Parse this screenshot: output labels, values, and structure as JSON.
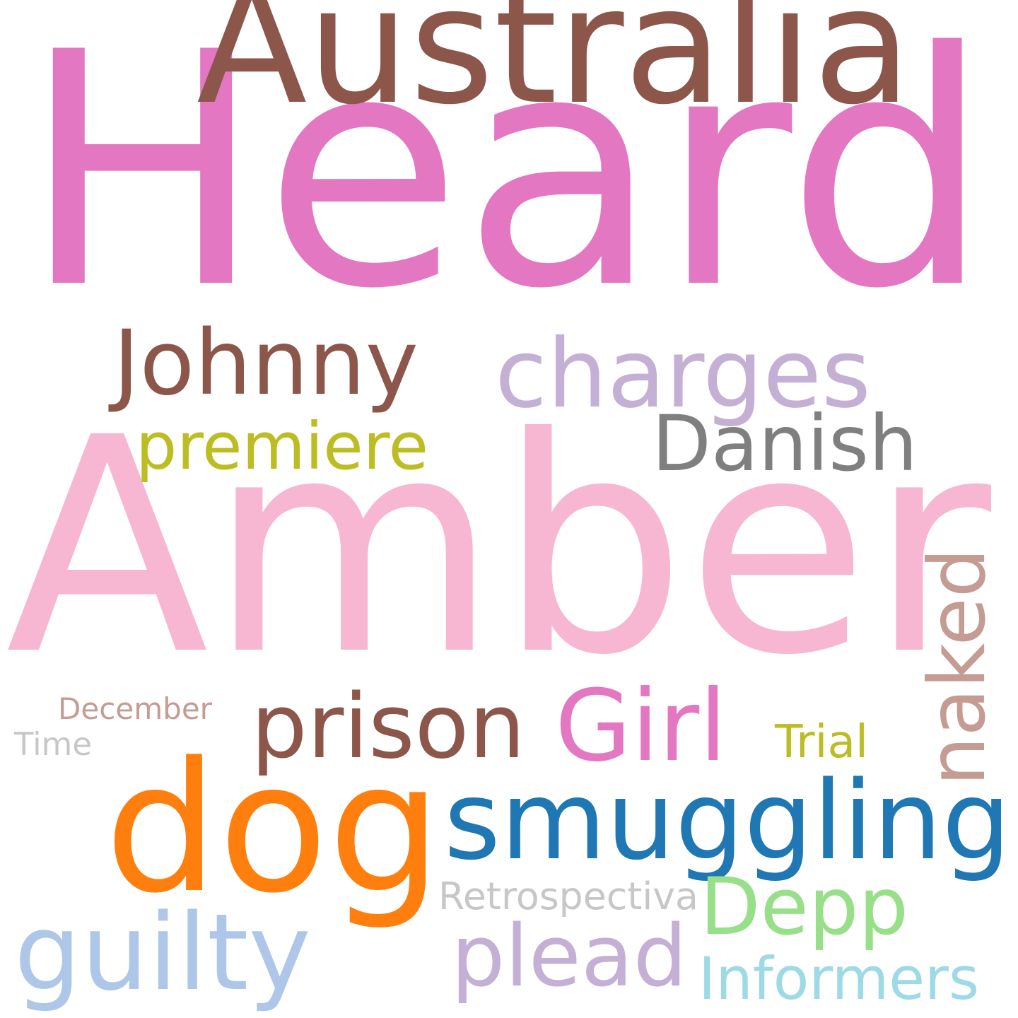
{
  "words": [
    {
      "id": "heard",
      "text": "Heard",
      "color": "#e377c2"
    },
    {
      "id": "amber",
      "text": "Amber",
      "color": "#f7b6d2"
    },
    {
      "id": "australia",
      "text": "Australia",
      "color": "#8c564b"
    },
    {
      "id": "dog",
      "text": "dog",
      "color": "#ff7f0e"
    },
    {
      "id": "smuggling",
      "text": "smuggling",
      "color": "#1f77b4"
    },
    {
      "id": "johnny",
      "text": "Johnny",
      "color": "#8c564b"
    },
    {
      "id": "charges",
      "text": "charges",
      "color": "#c5b0d5"
    },
    {
      "id": "danish",
      "text": "Danish",
      "color": "#7f7f7f"
    },
    {
      "id": "premiere",
      "text": "premiere",
      "color": "#bcbd22"
    },
    {
      "id": "naked",
      "text": "naked",
      "color": "#c49c94"
    },
    {
      "id": "prison",
      "text": "prison",
      "color": "#8c564b"
    },
    {
      "id": "girl",
      "text": "Girl",
      "color": "#e377c2"
    },
    {
      "id": "depp",
      "text": "Depp",
      "color": "#98df8a"
    },
    {
      "id": "guilty",
      "text": "guilty",
      "color": "#aec7e8"
    },
    {
      "id": "plead",
      "text": "plead",
      "color": "#c5b0d5"
    },
    {
      "id": "informers",
      "text": "Informers",
      "color": "#9edae5"
    },
    {
      "id": "retrospectiva",
      "text": "Retrospectiva",
      "color": "#c7c7c7"
    },
    {
      "id": "december",
      "text": "December",
      "color": "#c49c94"
    },
    {
      "id": "time",
      "text": "Time",
      "color": "#c7c7c7"
    },
    {
      "id": "trial",
      "text": "Trial",
      "color": "#bcbd22"
    }
  ]
}
